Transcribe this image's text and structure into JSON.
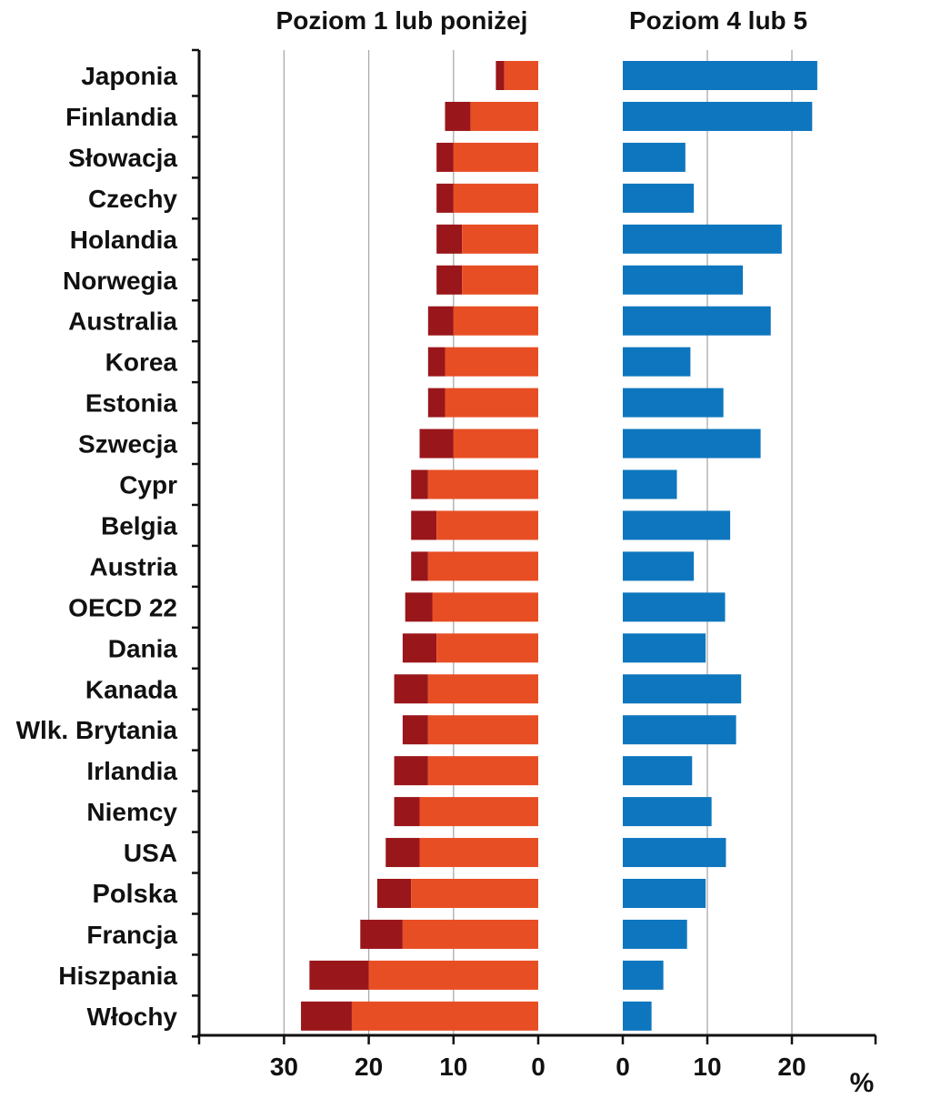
{
  "chart_data": {
    "type": "bar",
    "orientation": "horizontal",
    "unit_label": "%",
    "colors": {
      "level1_dark": "#99161a",
      "level1_light": "#e84e24",
      "level45": "#0e76be",
      "grid": "#aaaaaa",
      "axis": "#111111"
    },
    "panels": [
      {
        "title": "Poziom 1 lub poniżej",
        "direction": "left",
        "xlim": [
          0,
          40
        ],
        "ticks": [
          0,
          10,
          20,
          30
        ],
        "series": [
          {
            "name": "inner",
            "color_key": "level1_light"
          },
          {
            "name": "total",
            "color_key": "level1_dark"
          }
        ]
      },
      {
        "title": "Poziom 4 lub 5",
        "direction": "right",
        "xlim": [
          0,
          30
        ],
        "ticks": [
          0,
          10,
          20
        ],
        "series": [
          {
            "name": "value",
            "color_key": "level45"
          }
        ]
      }
    ],
    "categories": [
      "Japonia",
      "Finlandia",
      "Słowacja",
      "Czechy",
      "Holandia",
      "Norwegia",
      "Australia",
      "Korea",
      "Estonia",
      "Szwecja",
      "Cypr",
      "Belgia",
      "Austria",
      "OECD 22",
      "Dania",
      "Kanada",
      "Wlk. Brytania",
      "Irlandia",
      "Niemcy",
      "USA",
      "Polska",
      "Francja",
      "Hiszpania",
      "Włochy"
    ],
    "highlight": "Polska",
    "level1_inner": [
      4,
      8,
      10,
      10,
      9,
      9,
      10,
      11,
      11,
      10,
      13,
      12,
      13,
      12.5,
      12,
      13,
      13,
      13,
      14,
      14,
      15,
      16,
      20,
      22
    ],
    "level1_total": [
      5,
      11,
      12,
      12,
      12,
      12,
      13,
      13,
      13,
      14,
      15,
      15,
      15,
      15.7,
      16,
      17,
      16,
      17,
      17,
      18,
      19,
      21,
      27,
      28
    ],
    "level45": [
      23,
      22.4,
      7.4,
      8.4,
      18.8,
      14.2,
      17.5,
      8,
      11.9,
      16.3,
      6.4,
      12.7,
      8.4,
      12.1,
      9.8,
      14,
      13.4,
      8.2,
      10.5,
      12.2,
      9.8,
      7.6,
      4.8,
      3.4
    ]
  }
}
